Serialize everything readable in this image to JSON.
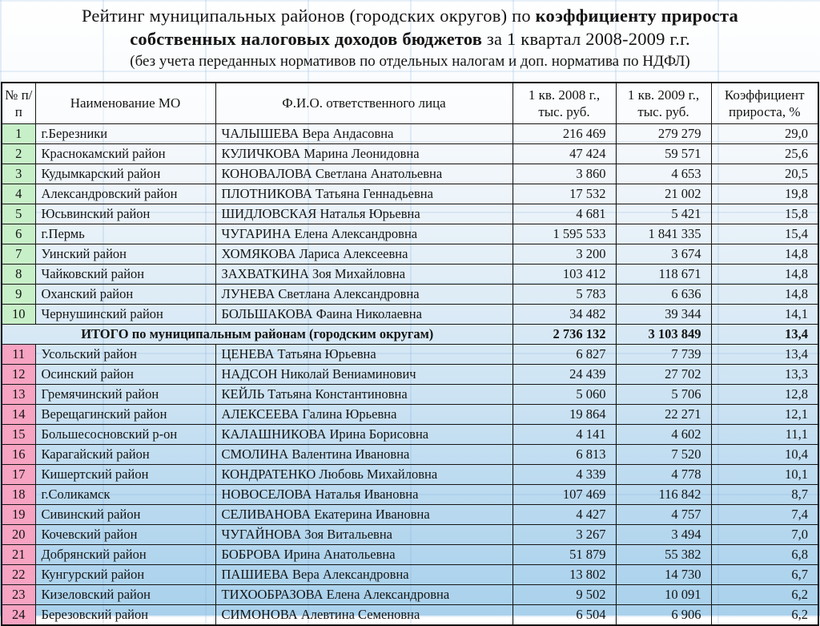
{
  "title": {
    "line1_normal": "Рейтинг муниципальных районов (городских округов) по ",
    "line1_bold": "коэффициенту прироста",
    "line2_bold": "собственных налоговых доходов бюджетов",
    "line2_normal": " за 1 квартал 2008-2009 г.г.",
    "line3": "(без учета переданных нормативов по отдельных налогам и доп. норматива по НДФЛ)"
  },
  "colors": {
    "green_rank_cell": "#c8f0c8",
    "pink_rank_cell": "#f7a3c2",
    "table_border": "#161616",
    "background_bottom": "#a9d1ec"
  },
  "table": {
    "headers": [
      "№ п/п",
      "Наименование МО",
      "Ф.И.О. ответственного лица",
      "1 кв. 2008 г., тыс. руб.",
      "1 кв. 2009 г., тыс. руб.",
      "Коэффициент прироста, %"
    ],
    "rows": [
      {
        "num": "1",
        "band": "green",
        "name": "г.Березники",
        "person": "ЧАЛЫШЕВА Вера Андасовна",
        "v2008": "216 469",
        "v2009": "279 279",
        "coef": "29,0"
      },
      {
        "num": "2",
        "band": "green",
        "name": "Краснокамский район",
        "person": "КУЛИЧКОВА Марина Леонидовна",
        "v2008": "47 424",
        "v2009": "59 571",
        "coef": "25,6"
      },
      {
        "num": "3",
        "band": "green",
        "name": "Кудымкарский район",
        "person": "КОНОВАЛОВА Светлана Анатольевна",
        "v2008": "3 860",
        "v2009": "4 653",
        "coef": "20,5"
      },
      {
        "num": "4",
        "band": "green",
        "name": "Александровский район",
        "person": "ПЛОТНИКОВА Татьяна Геннадьевна",
        "v2008": "17 532",
        "v2009": "21 002",
        "coef": "19,8"
      },
      {
        "num": "5",
        "band": "green",
        "name": "Юсьвинский район",
        "person": "ШИДЛОВСКАЯ Наталья Юрьевна",
        "v2008": "4 681",
        "v2009": "5 421",
        "coef": "15,8"
      },
      {
        "num": "6",
        "band": "green",
        "name": "г.Пермь",
        "person": "ЧУГАРИНА Елена Александровна",
        "v2008": "1 595 533",
        "v2009": "1 841 335",
        "coef": "15,4"
      },
      {
        "num": "7",
        "band": "green",
        "name": "Уинский район",
        "person": "ХОМЯКОВА Лариса Алексеевна",
        "v2008": "3 200",
        "v2009": "3 674",
        "coef": "14,8"
      },
      {
        "num": "8",
        "band": "green",
        "name": "Чайковский район",
        "person": "ЗАХВАТКИНА Зоя Михайловна",
        "v2008": "103 412",
        "v2009": "118 671",
        "coef": "14,8"
      },
      {
        "num": "9",
        "band": "green",
        "name": "Оханский район",
        "person": "ЛУНЕВА Светлана Александровна",
        "v2008": "5 783",
        "v2009": "6 636",
        "coef": "14,8"
      },
      {
        "num": "10",
        "band": "green",
        "name": "Чернушинский район",
        "person": "БОЛЬШАКОВА Фаина Николаевна",
        "v2008": "34 482",
        "v2009": "39 344",
        "coef": "14,1"
      },
      {
        "type": "total",
        "name": "ИТОГО по муниципальным районам (городским округам)",
        "v2008": "2 736 132",
        "v2009": "3 103 849",
        "coef": "13,4"
      },
      {
        "num": "11",
        "band": "pink",
        "name": "Усольский район",
        "person": "ЦЕНЕВА Татьяна Юрьевна",
        "v2008": "6 827",
        "v2009": "7 739",
        "coef": "13,4"
      },
      {
        "num": "12",
        "band": "pink",
        "name": "Осинский район",
        "person": "НАДСОН Николай Вениаминович",
        "v2008": "24 439",
        "v2009": "27 702",
        "coef": "13,3"
      },
      {
        "num": "13",
        "band": "pink",
        "name": "Гремячинский район",
        "person": "КЕЙЛЬ Татьяна Константиновна",
        "v2008": "5 060",
        "v2009": "5 706",
        "coef": "12,8"
      },
      {
        "num": "14",
        "band": "pink",
        "name": "Верещагинский район",
        "person": "АЛЕКСЕЕВА Галина Юрьевна",
        "v2008": "19 864",
        "v2009": "22 271",
        "coef": "12,1"
      },
      {
        "num": "15",
        "band": "pink",
        "name": "Большесосновский р-он",
        "person": "КАЛАШНИКОВА Ирина Борисовна",
        "v2008": "4 141",
        "v2009": "4 602",
        "coef": "11,1"
      },
      {
        "num": "16",
        "band": "pink",
        "name": "Карагайский район",
        "person": "СМОЛИНА Валентина Ивановна",
        "v2008": "6 813",
        "v2009": "7 520",
        "coef": "10,4"
      },
      {
        "num": "17",
        "band": "pink",
        "name": "Кишертский район",
        "person": "КОНДРАТЕНКО Любовь Михайловна",
        "v2008": "4 339",
        "v2009": "4 778",
        "coef": "10,1"
      },
      {
        "num": "18",
        "band": "pink",
        "name": "г.Соликамск",
        "person": "НОВОСЕЛОВА Наталья Ивановна",
        "v2008": "107 469",
        "v2009": "116 842",
        "coef": "8,7"
      },
      {
        "num": "19",
        "band": "pink",
        "name": "Сивинский район",
        "person": "СЕЛИВАНОВА Екатерина Ивановна",
        "v2008": "4 427",
        "v2009": "4 757",
        "coef": "7,4"
      },
      {
        "num": "20",
        "band": "pink",
        "name": "Кочевский район",
        "person": "ЧУГАЙНОВА Зоя Витальевна",
        "v2008": "3 267",
        "v2009": "3 494",
        "coef": "7,0"
      },
      {
        "num": "21",
        "band": "pink",
        "name": "Добрянский район",
        "person": "БОБРОВА Ирина Анатольевна",
        "v2008": "51 879",
        "v2009": "55 382",
        "coef": "6,8"
      },
      {
        "num": "22",
        "band": "pink",
        "name": "Кунгурский район",
        "person": "ПАШИЕВА Вера Александровна",
        "v2008": "13 802",
        "v2009": "14 730",
        "coef": "6,7"
      },
      {
        "num": "23",
        "band": "pink",
        "name": "Кизеловский район",
        "person": "ТИХООБРАЗОВА Елена Александровна",
        "v2008": "9 502",
        "v2009": "10 091",
        "coef": "6,2"
      },
      {
        "num": "24",
        "band": "pink",
        "name": "Березовский район",
        "person": "СИМОНОВА Алевтина Семеновна",
        "v2008": "6 504",
        "v2009": "6 906",
        "coef": "6,2"
      }
    ]
  }
}
